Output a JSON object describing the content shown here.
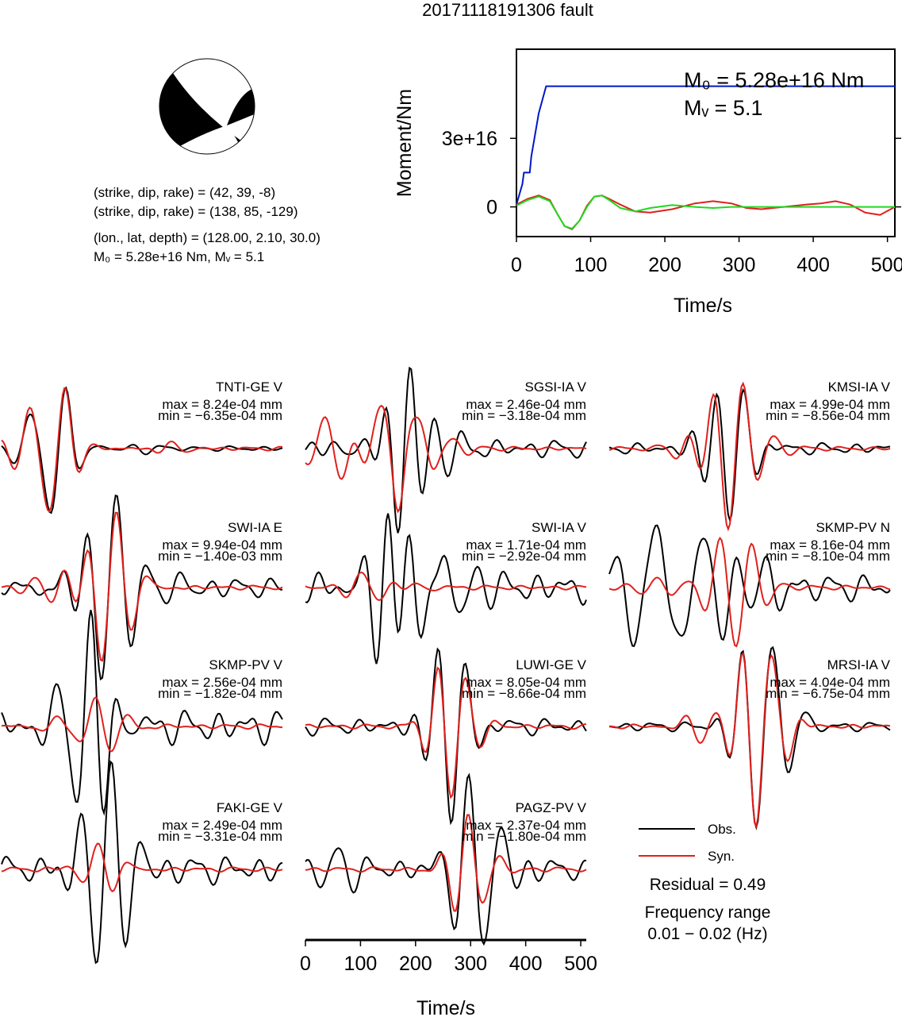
{
  "title": "20171118191306 fault",
  "mechanism": {
    "line1": "(strike, dip, rake) = (42, 39, -8)",
    "line2": "(strike, dip, rake) = (138, 85, -129)",
    "line3": "(lon., lat, depth) = (128.00, 2.10, 30.0)",
    "line4": "M₀ = 5.28e+16 Nm, Mᵥ = 5.1"
  },
  "moment_panel": {
    "m0_label": "M₀ = 5.28e+16 Nm",
    "mw_label": "Mᵥ = 5.1"
  },
  "legend": {
    "obs": "Obs.",
    "syn": "Syn.",
    "residual": "Residual = 0.49",
    "freq_title": "Frequency range",
    "freq_range": "0.01 − 0.02 (Hz)"
  },
  "colors": {
    "obs": "#000000",
    "syn": "#e0201c",
    "cumulative": "#0018c8",
    "green": "#20d820"
  },
  "chart_data": [
    {
      "type": "line",
      "xlabel": "Time/s",
      "ylabel": "Moment/Nm",
      "xlim": [
        0,
        510
      ],
      "ylim": [
        -1.3e+16,
        6.9e+16
      ],
      "xticks": [
        "0",
        "100",
        "200",
        "300",
        "400",
        "500"
      ],
      "yticks": [
        {
          "value": 0,
          "label": "0"
        },
        {
          "value": 3e+16,
          "label": "3e+16"
        }
      ],
      "series": [
        {
          "color": "blue",
          "x": [
            0,
            8,
            10,
            18,
            20,
            30,
            40,
            45,
            510
          ],
          "y": [
            1000000000000000.0,
            1e+16,
            1.5e+16,
            1.5e+16,
            2.2e+16,
            4.1e+16,
            5.28e+16,
            5.28e+16,
            5.28e+16
          ]
        },
        {
          "color": "red",
          "x": [
            0,
            15,
            30,
            45,
            55,
            65,
            75,
            85,
            95,
            105,
            115,
            125,
            140,
            160,
            180,
            210,
            240,
            265,
            290,
            310,
            330,
            360,
            390,
            410,
            430,
            450,
            470,
            490,
            510
          ],
          "y": [
            1000000000000000.0,
            3500000000000000.0,
            5000000000000000.0,
            3000000000000000.0,
            -3000000000000000.0,
            -8500000000000000.0,
            -9800000000000000.0,
            -6000000000000000.0,
            500000000000000.0,
            4500000000000000.0,
            5000000000000000.0,
            3500000000000000.0,
            1000000000000000.0,
            -2000000000000000.0,
            -2500000000000000.0,
            -1000000000000000.0,
            1500000000000000.0,
            2500000000000000.0,
            1500000000000000.0,
            -500000000000000.0,
            -1000000000000000.0,
            0.0,
            1000000000000000.0,
            1500000000000000.0,
            2500000000000000.0,
            1000000000000000.0,
            -2500000000000000.0,
            -3500000000000000.0,
            0.0
          ]
        },
        {
          "color": "green",
          "x": [
            0,
            15,
            30,
            45,
            55,
            65,
            75,
            85,
            95,
            105,
            115,
            125,
            140,
            160,
            180,
            210,
            240,
            265,
            290,
            330,
            400,
            450,
            510
          ],
          "y": [
            500000000000000.0,
            3000000000000000.0,
            4500000000000000.0,
            2500000000000000.0,
            -3000000000000000.0,
            -8500000000000000.0,
            -9500000000000000.0,
            -6000000000000000.0,
            0.0,
            4500000000000000.0,
            5000000000000000.0,
            3000000000000000.0,
            -500000000000000.0,
            -2000000000000000.0,
            -500000000000000.0,
            800000000000000.0,
            0.0,
            -500000000000000.0,
            0.0,
            0.0,
            0.0,
            0.0,
            0.0
          ]
        }
      ]
    },
    {
      "type": "line",
      "xlabel": "Time/s",
      "xlim": [
        0,
        510
      ],
      "xticks": [
        "0",
        "100",
        "200",
        "300",
        "400",
        "500"
      ],
      "stations": [
        {
          "name": "TNTI-GE V",
          "max": "max = 8.24e-04 mm",
          "min": "min = −6.35e-04 mm",
          "pulses": [
            [
              75,
              60,
              -0.9
            ],
            [
              95,
              60,
              -1.0
            ],
            [
              115,
              50,
              0.5
            ],
            [
              20,
              60,
              -0.15
            ],
            [
              260,
              60,
              -0.1
            ]
          ],
          "synpulses": [
            [
              75,
              60,
              -1.0
            ],
            [
              95,
              60,
              -0.8
            ],
            [
              115,
              50,
              0.55
            ],
            [
              25,
              60,
              -0.2
            ],
            [
              310,
              60,
              0.15
            ]
          ],
          "noise": 0.05
        },
        {
          "name": "SGSI-IA V",
          "max": "max = 2.46e-04 mm",
          "min": "min = −3.18e-04 mm",
          "pulses": [
            [
              100,
              55,
              0.2
            ],
            [
              170,
              50,
              -1.0
            ],
            [
              190,
              50,
              0.85
            ],
            [
              230,
              50,
              0.3
            ],
            [
              260,
              50,
              -0.2
            ]
          ],
          "synpulses": [
            [
              30,
              60,
              0.4
            ],
            [
              70,
              60,
              -0.5
            ],
            [
              130,
              60,
              0.8
            ],
            [
              170,
              50,
              -1.0
            ],
            [
              210,
              50,
              0.5
            ],
            [
              270,
              60,
              0.15
            ]
          ],
          "noise": 0.2
        },
        {
          "name": "KMSI-IA V",
          "max": "max = 4.99e-04 mm",
          "min": "min = −8.56e-04 mm",
          "pulses": [
            [
              200,
              55,
              0.6
            ],
            [
              215,
              55,
              -1.0
            ],
            [
              245,
              55,
              0.5
            ],
            [
              180,
              60,
              -0.3
            ]
          ],
          "synpulses": [
            [
              150,
              60,
              0.35
            ],
            [
              185,
              60,
              0.45
            ],
            [
              215,
              55,
              -0.9
            ],
            [
              245,
              55,
              0.55
            ],
            [
              300,
              60,
              0.15
            ]
          ],
          "noise": 0.12
        },
        {
          "name": "SWI-IA E",
          "max": "max = 9.94e-04 mm",
          "min": "min = −1.40e-03 mm",
          "pulses": [
            [
              115,
              55,
              0.3
            ],
            [
              180,
              55,
              -1.0
            ],
            [
              210,
              55,
              0.75
            ],
            [
              240,
              60,
              -0.2
            ],
            [
              330,
              60,
              0.15
            ]
          ],
          "synpulses": [
            [
              115,
              55,
              0.25
            ],
            [
              180,
              55,
              -0.8
            ],
            [
              210,
              55,
              0.65
            ],
            [
              240,
              60,
              -0.2
            ],
            [
              60,
              60,
              0.1
            ]
          ],
          "noise": 0.18
        },
        {
          "name": "SWI-IA V",
          "max": "max = 1.71e-04 mm",
          "min": "min = −2.92e-04 mm",
          "pulses": [
            [
              130,
              50,
              -1.0
            ],
            [
              150,
              50,
              0.75
            ],
            [
              180,
              50,
              0.5
            ],
            [
              210,
              50,
              -0.6
            ],
            [
              250,
              50,
              0.45
            ],
            [
              290,
              50,
              -0.4
            ]
          ],
          "synpulses": [
            [
              100,
              60,
              0.2
            ],
            [
              140,
              60,
              -0.1
            ],
            [
              200,
              60,
              0.1
            ]
          ],
          "noise": 0.3
        },
        {
          "name": "SKMP-PV N",
          "max": "max = 8.16e-04 mm",
          "min": "min = −8.10e-04 mm",
          "pulses": [
            [
              40,
              60,
              -0.65
            ],
            [
              85,
              60,
              1.0
            ],
            [
              130,
              60,
              -0.9
            ],
            [
              175,
              60,
              0.6
            ],
            [
              210,
              60,
              -0.3
            ],
            [
              280,
              60,
              0.5
            ]
          ],
          "synpulses": [
            [
              85,
              60,
              0.15
            ],
            [
              200,
              60,
              0.4
            ],
            [
              230,
              60,
              -0.5
            ],
            [
              260,
              60,
              0.3
            ]
          ],
          "noise": 0.25
        },
        {
          "name": "SKMP-PV V",
          "max": "max = 2.56e-04 mm",
          "min": "min = −1.82e-04 mm",
          "pulses": [
            [
              130,
              55,
              -0.6
            ],
            [
              165,
              50,
              0.85
            ],
            [
              185,
              55,
              -0.8
            ],
            [
              90,
              60,
              0.3
            ],
            [
              220,
              60,
              -0.3
            ]
          ],
          "synpulses": [
            [
              100,
              60,
              0.15
            ],
            [
              170,
              60,
              0.3
            ],
            [
              200,
              60,
              -0.2
            ]
          ],
          "noise": 0.3
        },
        {
          "name": "LUWI-GE V",
          "max": "max = 8.05e-04 mm",
          "min": "min = −8.66e-04 mm",
          "pulses": [
            [
              240,
              50,
              0.6
            ],
            [
              265,
              50,
              -1.0
            ],
            [
              295,
              55,
              0.35
            ]
          ],
          "synpulses": [
            [
              240,
              50,
              0.45
            ],
            [
              265,
              50,
              -0.6
            ],
            [
              295,
              55,
              0.35
            ]
          ],
          "noise": 0.15
        },
        {
          "name": "MRSI-IA V",
          "max": "max = 4.04e-04 mm",
          "min": "min = −6.75e-04 mm",
          "pulses": [
            [
              240,
              50,
              0.4
            ],
            [
              265,
              50,
              -1.0
            ],
            [
              300,
              55,
              0.8
            ],
            [
              330,
              60,
              -0.2
            ]
          ],
          "synpulses": [
            [
              165,
              60,
              -0.25
            ],
            [
              240,
              50,
              0.4
            ],
            [
              265,
              50,
              -1.0
            ],
            [
              300,
              55,
              0.8
            ]
          ],
          "noise": 0.08
        },
        {
          "name": "FAKI-GE V",
          "max": "max = 2.49e-04 mm",
          "min": "min = −3.31e-04 mm",
          "pulses": [
            [
              170,
              55,
              -0.9
            ],
            [
              200,
              55,
              0.8
            ],
            [
              230,
              55,
              -0.5
            ],
            [
              150,
              60,
              0.3
            ]
          ],
          "synpulses": [
            [
              175,
              60,
              0.3
            ],
            [
              200,
              60,
              -0.15
            ]
          ],
          "noise": 0.25
        },
        {
          "name": "PAGZ-PV V",
          "max": "max = 2.37e-04 mm",
          "min": "min = −1.80e-04 mm",
          "pulses": [
            [
              270,
              50,
              -0.3
            ],
            [
              295,
              50,
              1.0
            ],
            [
              330,
              55,
              -0.6
            ],
            [
              360,
              55,
              0.35
            ],
            [
              60,
              60,
              0.25
            ]
          ],
          "synpulses": [
            [
              270,
              50,
              -0.2
            ],
            [
              295,
              50,
              0.6
            ],
            [
              330,
              55,
              -0.25
            ]
          ],
          "noise": 0.2
        }
      ]
    }
  ]
}
